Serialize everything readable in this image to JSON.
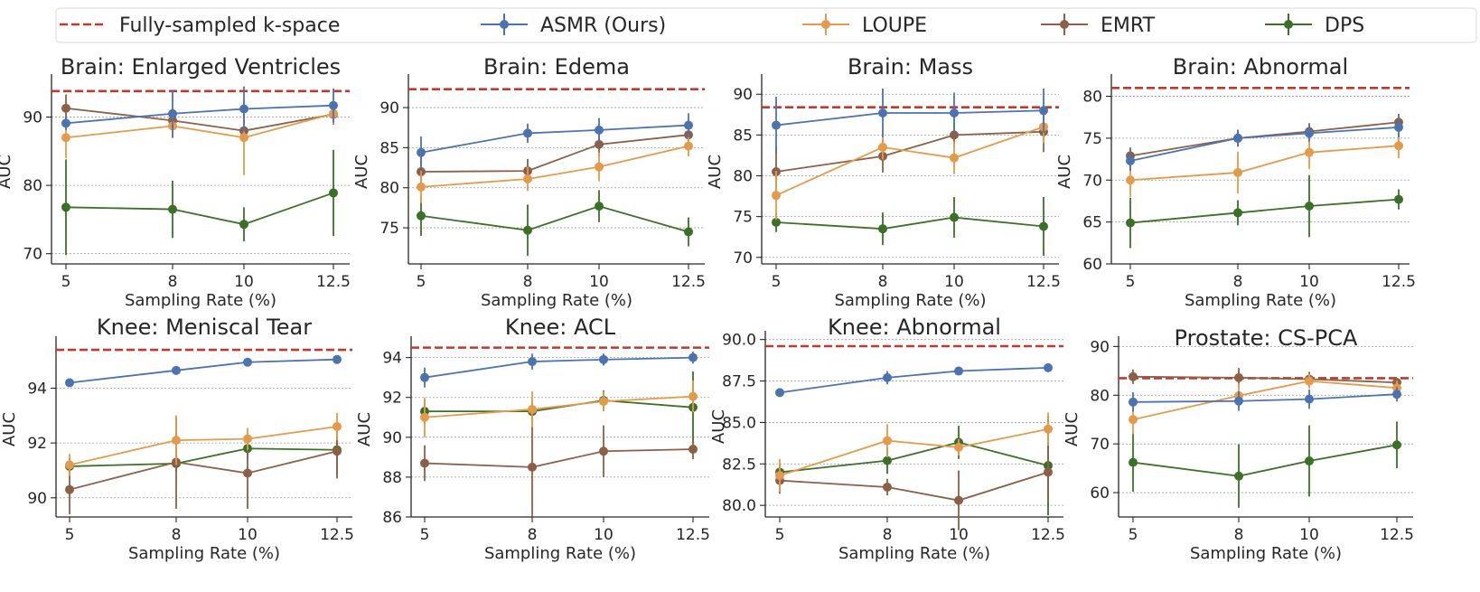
{
  "colors": {
    "reference": "#c0392b",
    "ASMR (Ours)": "#4c72b0",
    "LOUPE": "#e39b4b",
    "EMRT": "#8c6048",
    "DPS": "#3c7028"
  },
  "legend": [
    {
      "name": "Fully-sampled k-space",
      "kind": "reference"
    },
    {
      "name": "ASMR (Ours)",
      "kind": "series"
    },
    {
      "name": "LOUPE",
      "kind": "series"
    },
    {
      "name": "EMRT",
      "kind": "series"
    },
    {
      "name": "DPS",
      "kind": "series"
    }
  ],
  "chart_data": [
    {
      "type": "line",
      "title": "Brain: Enlarged Ventricles",
      "xlabel": "Sampling Rate (%)",
      "ylabel": "AUC",
      "x": [
        5,
        8,
        10,
        12.5
      ],
      "xticks": [
        "5",
        "8",
        "10",
        "12.5"
      ],
      "yticks": [
        "70",
        "80",
        "90"
      ],
      "ylim": [
        68.5,
        95.5
      ],
      "grid": true,
      "reference": 93.8,
      "series": [
        {
          "name": "ASMR (Ours)",
          "values": [
            89.1,
            90.5,
            91.2,
            91.7
          ],
          "err": [
            1.0,
            3.5,
            3.3,
            2.5
          ]
        },
        {
          "name": "LOUPE",
          "values": [
            87.0,
            88.7,
            87.0,
            90.5
          ],
          "err": [
            3.0,
            1.8,
            5.5,
            1.5
          ]
        },
        {
          "name": "EMRT",
          "values": [
            91.3,
            89.5,
            88.0,
            90.4
          ],
          "err": [
            2.0,
            1.0,
            1.5,
            1.5
          ]
        },
        {
          "name": "DPS",
          "values": [
            76.8,
            76.5,
            74.3,
            78.9
          ],
          "err": [
            7.0,
            4.2,
            2.5,
            6.3
          ]
        }
      ]
    },
    {
      "type": "line",
      "title": "Brain: Edema",
      "xlabel": "Sampling Rate (%)",
      "ylabel": "AUC",
      "x": [
        5,
        8,
        10,
        12.5
      ],
      "xticks": [
        "5",
        "8",
        "10",
        "12.5"
      ],
      "yticks": [
        "75",
        "80",
        "85",
        "90"
      ],
      "ylim": [
        70.5,
        93.5
      ],
      "grid": true,
      "reference": 92.3,
      "series": [
        {
          "name": "ASMR (Ours)",
          "values": [
            84.4,
            86.8,
            87.2,
            87.8
          ],
          "err": [
            2.0,
            1.2,
            1.5,
            1.5
          ]
        },
        {
          "name": "LOUPE",
          "values": [
            80.1,
            81.1,
            82.6,
            85.2
          ],
          "err": [
            2.0,
            1.5,
            1.8,
            1.3
          ]
        },
        {
          "name": "EMRT",
          "values": [
            82.0,
            82.1,
            85.4,
            86.6
          ],
          "err": [
            2.0,
            1.5,
            1.5,
            1.2
          ]
        },
        {
          "name": "DPS",
          "values": [
            76.5,
            74.7,
            77.7,
            74.5
          ],
          "err": [
            2.5,
            3.2,
            2.0,
            1.8
          ]
        }
      ]
    },
    {
      "type": "line",
      "title": "Brain: Mass",
      "xlabel": "Sampling Rate (%)",
      "ylabel": "AUC",
      "x": [
        5,
        8,
        10,
        12.5
      ],
      "xticks": [
        "5",
        "8",
        "10",
        "12.5"
      ],
      "yticks": [
        "70",
        "75",
        "80",
        "85",
        "90"
      ],
      "ylim": [
        69.2,
        91.8
      ],
      "grid": true,
      "reference": 88.4,
      "series": [
        {
          "name": "ASMR (Ours)",
          "values": [
            86.2,
            87.7,
            87.7,
            88.0
          ],
          "err": [
            3.5,
            3.0,
            2.5,
            2.7
          ]
        },
        {
          "name": "LOUPE",
          "values": [
            77.6,
            83.5,
            82.2,
            86.0
          ],
          "err": [
            3.0,
            1.5,
            2.0,
            2.0
          ]
        },
        {
          "name": "EMRT",
          "values": [
            80.5,
            82.4,
            85.0,
            85.4
          ],
          "err": [
            3.0,
            2.0,
            1.5,
            2.5
          ]
        },
        {
          "name": "DPS",
          "values": [
            74.3,
            73.5,
            74.9,
            73.8
          ],
          "err": [
            1.2,
            2.0,
            2.5,
            3.6
          ]
        }
      ]
    },
    {
      "type": "line",
      "title": "Brain: Abnormal",
      "xlabel": "Sampling Rate (%)",
      "ylabel": "AUC",
      "x": [
        5,
        8,
        10,
        12.5
      ],
      "xticks": [
        "5",
        "8",
        "10",
        "12.5"
      ],
      "yticks": [
        "60",
        "65",
        "70",
        "75",
        "80"
      ],
      "ylim": [
        60,
        82
      ],
      "grid": true,
      "reference": 81.0,
      "series": [
        {
          "name": "ASMR (Ours)",
          "values": [
            72.3,
            75.0,
            75.6,
            76.3
          ],
          "err": [
            1.2,
            1.0,
            1.0,
            1.2
          ]
        },
        {
          "name": "LOUPE",
          "values": [
            70.0,
            70.9,
            73.3,
            74.1
          ],
          "err": [
            2.0,
            2.5,
            2.0,
            1.5
          ]
        },
        {
          "name": "EMRT",
          "values": [
            72.9,
            75.0,
            75.8,
            76.9
          ],
          "err": [
            1.0,
            1.0,
            1.0,
            1.0
          ]
        },
        {
          "name": "DPS",
          "values": [
            64.9,
            66.1,
            66.9,
            67.7
          ],
          "err": [
            3.0,
            1.5,
            3.7,
            1.2
          ]
        }
      ]
    },
    {
      "type": "line",
      "title": "Knee: Meniscal Tear",
      "xlabel": "Sampling Rate (%)",
      "ylabel": "AUC",
      "x": [
        5,
        8,
        10,
        12.5
      ],
      "xticks": [
        "5",
        "8",
        "10",
        "12.5"
      ],
      "yticks": [
        "90",
        "92",
        "94"
      ],
      "ylim": [
        89.3,
        95.7
      ],
      "grid": true,
      "reference": 95.4,
      "series": [
        {
          "name": "ASMR (Ours)",
          "values": [
            94.2,
            94.65,
            94.95,
            95.05
          ],
          "err": [
            0.1,
            0.15,
            0.15,
            0.15
          ]
        },
        {
          "name": "LOUPE",
          "values": [
            91.2,
            92.1,
            92.15,
            92.6
          ],
          "err": [
            0.4,
            0.9,
            0.4,
            0.5
          ]
        },
        {
          "name": "EMRT",
          "values": [
            90.3,
            91.3,
            90.9,
            91.7
          ],
          "err": [
            0.9,
            1.7,
            1.3,
            1.0
          ]
        },
        {
          "name": "DPS",
          "values": [
            91.15,
            91.25,
            91.8,
            91.75
          ],
          "err": [
            0.3,
            0.3,
            0.4,
            0.9
          ]
        }
      ]
    },
    {
      "type": "line",
      "title": "Knee: ACL",
      "xlabel": "Sampling Rate (%)",
      "ylabel": "AUC",
      "x": [
        5,
        8,
        10,
        12.5
      ],
      "xticks": [
        "5",
        "8",
        "10",
        "12.5"
      ],
      "yticks": [
        "86",
        "88",
        "90",
        "92",
        "94"
      ],
      "ylim": [
        86,
        94.8
      ],
      "grid": true,
      "reference": 94.5,
      "series": [
        {
          "name": "ASMR (Ours)",
          "values": [
            93.0,
            93.8,
            93.9,
            94.0
          ],
          "err": [
            0.5,
            0.4,
            0.3,
            0.3
          ]
        },
        {
          "name": "LOUPE",
          "values": [
            91.0,
            91.4,
            91.8,
            92.05
          ],
          "err": [
            1.0,
            0.9,
            0.5,
            0.8
          ]
        },
        {
          "name": "EMRT",
          "values": [
            88.7,
            88.5,
            89.3,
            89.4
          ],
          "err": [
            0.9,
            2.5,
            1.3,
            0.5
          ]
        },
        {
          "name": "DPS",
          "values": [
            91.3,
            91.3,
            91.85,
            91.5
          ],
          "err": [
            0.6,
            0.5,
            0.5,
            1.8
          ]
        }
      ]
    },
    {
      "type": "line",
      "title": "Knee: Abnormal",
      "xlabel": "Sampling Rate (%)",
      "ylabel": "AUC",
      "x": [
        5,
        8,
        10,
        12.5
      ],
      "xticks": [
        "5",
        "8",
        "10",
        "12.5"
      ],
      "yticks": [
        "80.0",
        "82.5",
        "85.0",
        "87.5",
        "90.0"
      ],
      "ylim": [
        79.3,
        90.2
      ],
      "grid": true,
      "reference": 89.6,
      "series": [
        {
          "name": "ASMR (Ours)",
          "values": [
            86.8,
            87.7,
            88.1,
            88.3
          ],
          "err": [
            0.1,
            0.4,
            0.1,
            0.1
          ]
        },
        {
          "name": "LOUPE",
          "values": [
            81.8,
            83.9,
            83.5,
            84.6
          ],
          "err": [
            1.0,
            1.0,
            0.5,
            1.0
          ]
        },
        {
          "name": "EMRT",
          "values": [
            81.5,
            81.1,
            80.3,
            82.0
          ],
          "err": [
            0.8,
            0.5,
            1.8,
            1.8
          ]
        },
        {
          "name": "DPS",
          "values": [
            82.0,
            82.7,
            83.8,
            82.4
          ],
          "err": [
            0.5,
            0.8,
            1.0,
            3.0
          ]
        }
      ]
    },
    {
      "type": "line",
      "title": "Prostate: CS-PCA",
      "xlabel": "Sampling Rate (%)",
      "ylabel": "AUC",
      "x": [
        5,
        8,
        10,
        12.5
      ],
      "xticks": [
        "5",
        "8",
        "10",
        "12.5"
      ],
      "yticks": [
        "60",
        "70",
        "80",
        "90"
      ],
      "ylim": [
        55,
        91
      ],
      "grid": true,
      "reference": 83.5,
      "series": [
        {
          "name": "ASMR (Ours)",
          "values": [
            78.6,
            78.8,
            79.2,
            80.2
          ],
          "err": [
            2.0,
            2.0,
            2.0,
            1.5
          ]
        },
        {
          "name": "LOUPE",
          "values": [
            75.0,
            79.9,
            82.9,
            81.5
          ],
          "err": [
            3.0,
            2.5,
            1.5,
            1.5
          ]
        },
        {
          "name": "EMRT",
          "values": [
            83.8,
            83.6,
            83.3,
            82.6
          ],
          "err": [
            1.5,
            2.0,
            1.5,
            1.0
          ]
        },
        {
          "name": "DPS",
          "values": [
            66.2,
            63.4,
            66.5,
            69.8
          ],
          "err": [
            6.0,
            6.5,
            7.3,
            4.8
          ]
        }
      ]
    }
  ]
}
